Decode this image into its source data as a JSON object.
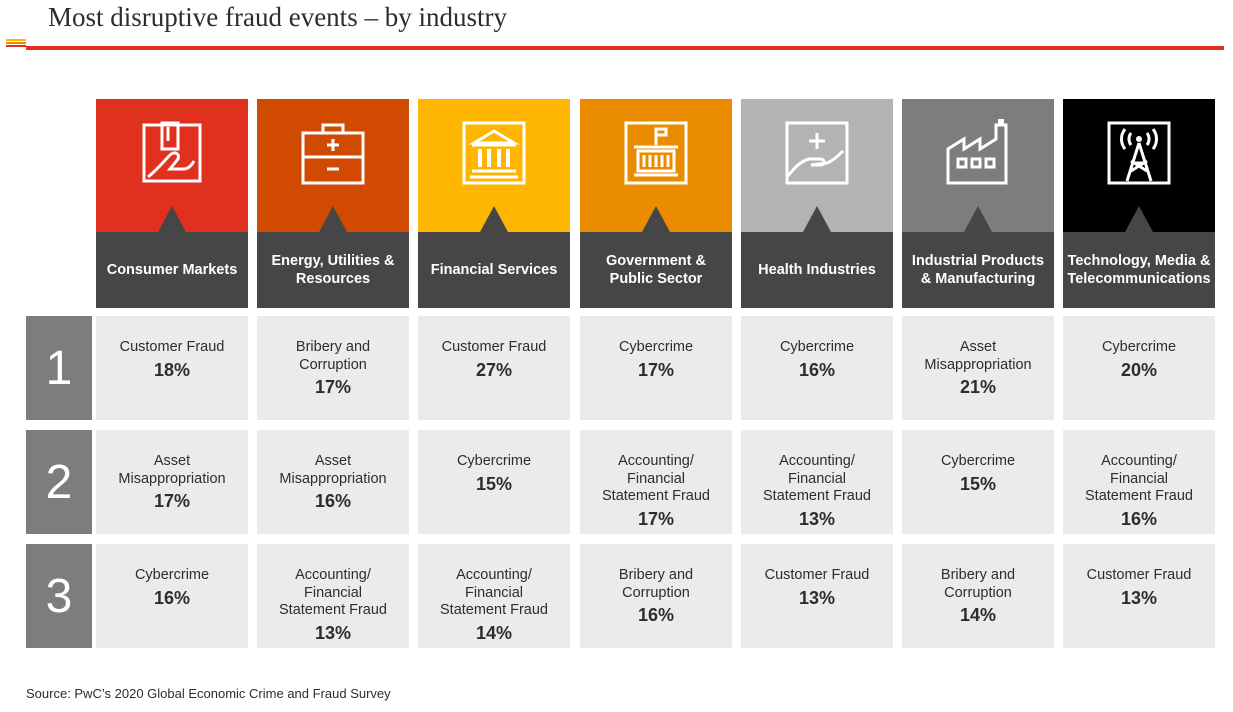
{
  "title": "Most disruptive fraud events – by industry",
  "source": "Source: PwC’s 2020 Global Economic Crime and Fraud Survey",
  "accent_color": "#e0301e",
  "rank_color": "#7d7d7d",
  "label_bg": "#464646",
  "cell_bg": "#ebebeb",
  "ranks": [
    "1",
    "2",
    "3"
  ],
  "industries": [
    {
      "label": "Consumer Markets",
      "color": "#e0301e",
      "icon": "hand-card-icon",
      "events": [
        {
          "name": "Customer Fraud",
          "pct": "18%"
        },
        {
          "name": "Asset Misappropriation",
          "pct": "17%"
        },
        {
          "name": "Cybercrime",
          "pct": "16%"
        }
      ]
    },
    {
      "label": "Energy, Utilities & Resources",
      "color": "#d04a02",
      "icon": "toolbox-icon",
      "events": [
        {
          "name": "Bribery and Corruption",
          "pct": "17%"
        },
        {
          "name": "Asset Misappropriation",
          "pct": "16%"
        },
        {
          "name": "Accounting/ Financial Statement Fraud",
          "pct": "13%"
        }
      ]
    },
    {
      "label": "Financial Services",
      "color": "#ffb600",
      "icon": "bank-icon",
      "events": [
        {
          "name": "Customer Fraud",
          "pct": "27%"
        },
        {
          "name": "Cybercrime",
          "pct": "15%"
        },
        {
          "name": "Accounting/ Financial Statement Fraud",
          "pct": "14%"
        }
      ]
    },
    {
      "label": "Government & Public Sector",
      "color": "#eb8c00",
      "icon": "government-building-icon",
      "events": [
        {
          "name": "Cybercrime",
          "pct": "17%"
        },
        {
          "name": "Accounting/ Financial Statement Fraud",
          "pct": "17%"
        },
        {
          "name": "Bribery and Corruption",
          "pct": "16%"
        }
      ]
    },
    {
      "label": "Health Industries",
      "color": "#b3b3b3",
      "icon": "hand-plus-icon",
      "events": [
        {
          "name": "Cybercrime",
          "pct": "16%"
        },
        {
          "name": "Accounting/ Financial Statement Fraud",
          "pct": "13%"
        },
        {
          "name": "Customer Fraud",
          "pct": "13%"
        }
      ]
    },
    {
      "label": "Industrial Products & Manufacturing",
      "color": "#7d7d7d",
      "icon": "factory-icon",
      "events": [
        {
          "name": "Asset Misappropriation",
          "pct": "21%"
        },
        {
          "name": "Cybercrime",
          "pct": "15%"
        },
        {
          "name": "Bribery and Corruption",
          "pct": "14%"
        }
      ]
    },
    {
      "label": "Technology, Media & Telecommunications",
      "color": "#000000",
      "icon": "antenna-tower-icon",
      "events": [
        {
          "name": "Cybercrime",
          "pct": "20%"
        },
        {
          "name": "Accounting/ Financial Statement Fraud",
          "pct": "16%"
        },
        {
          "name": "Customer Fraud",
          "pct": "13%"
        }
      ]
    }
  ]
}
